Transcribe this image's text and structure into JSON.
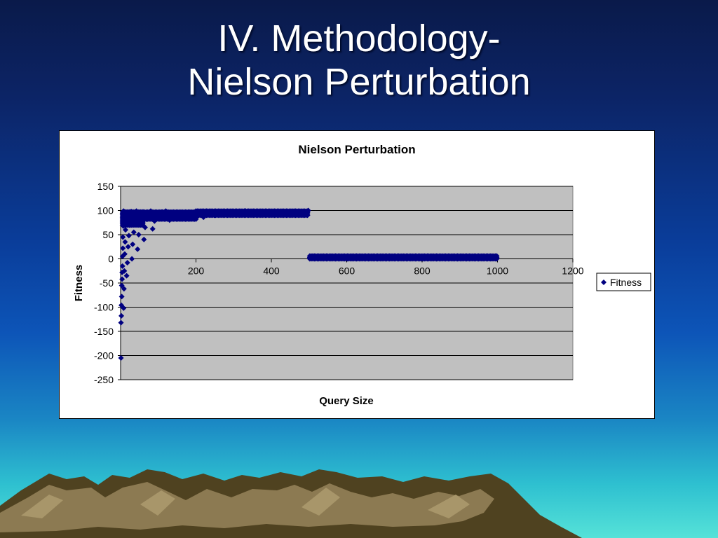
{
  "slide": {
    "title_line1": "IV. Methodology-",
    "title_line2": "Nielson Perturbation"
  },
  "colors": {
    "marker": "#000080",
    "plot_bg": "#c0c0c0",
    "gridline": "#000000"
  },
  "chart_data": {
    "type": "scatter",
    "title": "Nielson Perturbation",
    "xlabel": "Query Size",
    "ylabel": "Fitness",
    "xlim": [
      0,
      1200
    ],
    "ylim": [
      -250,
      150
    ],
    "xticks": [
      200,
      400,
      600,
      800,
      1000,
      1200
    ],
    "yticks": [
      150,
      100,
      50,
      0,
      -50,
      -100,
      -150,
      -200,
      -250
    ],
    "grid": "horizontal",
    "legend": {
      "position": "right",
      "entries": [
        "Fitness"
      ]
    },
    "series": [
      {
        "name": "Fitness",
        "marker": "diamond",
        "points": [
          [
            1,
            -205
          ],
          [
            1,
            -132
          ],
          [
            2,
            -118
          ],
          [
            2,
            -96
          ],
          [
            3,
            -78
          ],
          [
            3,
            -55
          ],
          [
            4,
            -42
          ],
          [
            4,
            -28
          ],
          [
            5,
            -15
          ],
          [
            5,
            5
          ],
          [
            6,
            22
          ],
          [
            6,
            45
          ],
          [
            7,
            68
          ],
          [
            7,
            88
          ],
          [
            8,
            99
          ],
          [
            8,
            -102
          ],
          [
            9,
            -62
          ],
          [
            10,
            -25
          ],
          [
            11,
            10
          ],
          [
            12,
            35
          ],
          [
            13,
            60
          ],
          [
            14,
            80
          ],
          [
            15,
            95
          ],
          [
            16,
            -35
          ],
          [
            18,
            -8
          ],
          [
            20,
            25
          ],
          [
            22,
            48
          ],
          [
            24,
            70
          ],
          [
            26,
            90
          ],
          [
            28,
            98
          ],
          [
            30,
            0
          ],
          [
            32,
            30
          ],
          [
            35,
            55
          ],
          [
            38,
            75
          ],
          [
            40,
            92
          ],
          [
            42,
            99
          ],
          [
            45,
            20
          ],
          [
            48,
            50
          ],
          [
            50,
            72
          ],
          [
            55,
            88
          ],
          [
            60,
            97
          ],
          [
            62,
            40
          ],
          [
            65,
            65
          ],
          [
            70,
            82
          ],
          [
            75,
            95
          ],
          [
            80,
            99
          ],
          [
            85,
            62
          ],
          [
            90,
            78
          ],
          [
            100,
            90
          ],
          [
            110,
            97
          ],
          [
            120,
            99
          ],
          [
            130,
            80
          ],
          [
            140,
            88
          ],
          [
            160,
            92
          ],
          [
            180,
            97
          ],
          [
            200,
            99
          ],
          [
            220,
            86
          ],
          [
            250,
            90
          ],
          [
            280,
            93
          ],
          [
            300,
            97
          ],
          [
            330,
            99
          ],
          [
            360,
            93
          ],
          [
            400,
            96
          ],
          [
            430,
            98
          ],
          [
            460,
            99
          ],
          [
            490,
            95
          ],
          [
            498,
            100
          ],
          [
            502,
            2
          ],
          [
            510,
            6
          ],
          [
            530,
            3
          ],
          [
            560,
            5
          ],
          [
            600,
            2
          ],
          [
            640,
            4
          ],
          [
            680,
            1
          ],
          [
            720,
            3
          ],
          [
            760,
            2
          ],
          [
            800,
            4
          ],
          [
            840,
            1
          ],
          [
            880,
            2
          ],
          [
            920,
            1
          ],
          [
            960,
            2
          ],
          [
            998,
            1
          ]
        ]
      }
    ]
  }
}
